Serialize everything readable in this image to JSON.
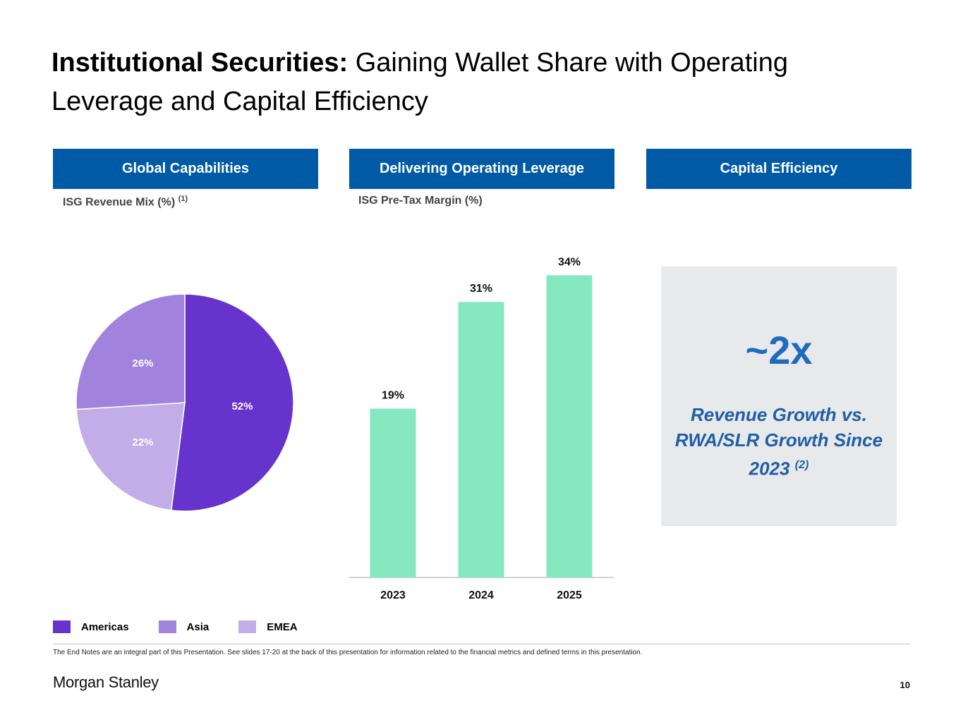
{
  "title": {
    "bold": "Institutional Securities:",
    "rest": " Gaining Wallet Share with Operating Leverage and Capital Efficiency"
  },
  "sections": {
    "global": {
      "header": "Global Capabilities",
      "subtitle": "ISG Revenue Mix (%)",
      "note": "(1)"
    },
    "leverage": {
      "header": "Delivering Operating Leverage",
      "subtitle": "ISG Pre-Tax Margin (%)"
    },
    "capital": {
      "header": "Capital Efficiency",
      "big": "~2x",
      "text": "Revenue Growth vs. RWA/SLR Growth Since 2023",
      "note": "(2)"
    }
  },
  "chart_data": [
    {
      "type": "pie",
      "title": "ISG Revenue Mix (%)",
      "categories": [
        "Americas",
        "EMEA",
        "Asia"
      ],
      "values": [
        52,
        22,
        26
      ],
      "labels": [
        "52%",
        "22%",
        "26%"
      ],
      "colors": [
        "#6633CC",
        "#C3ADE9",
        "#A183DD"
      ],
      "legend": [
        "Americas",
        "Asia",
        "EMEA"
      ],
      "legend_colors": [
        "#6633CC",
        "#A183DD",
        "#C3ADE9"
      ],
      "legend_position": "bottom-left"
    },
    {
      "type": "bar",
      "title": "ISG Pre-Tax Margin (%)",
      "categories": [
        "2023",
        "2024",
        "2025"
      ],
      "values": [
        19,
        31,
        34
      ],
      "labels": [
        "19%",
        "31%",
        "34%"
      ],
      "color": "#86E8C1",
      "ylim": [
        0,
        38
      ]
    }
  ],
  "footnote": "The End Notes are an integral part of this Presentation. See slides 17-20 at the back of this presentation for information related to the financial metrics and defined terms in this presentation.",
  "logo": "Morgan Stanley",
  "page_number": "10",
  "colors": {
    "header_bg": "#005AA6",
    "accent_text": "#1F6BBE"
  }
}
